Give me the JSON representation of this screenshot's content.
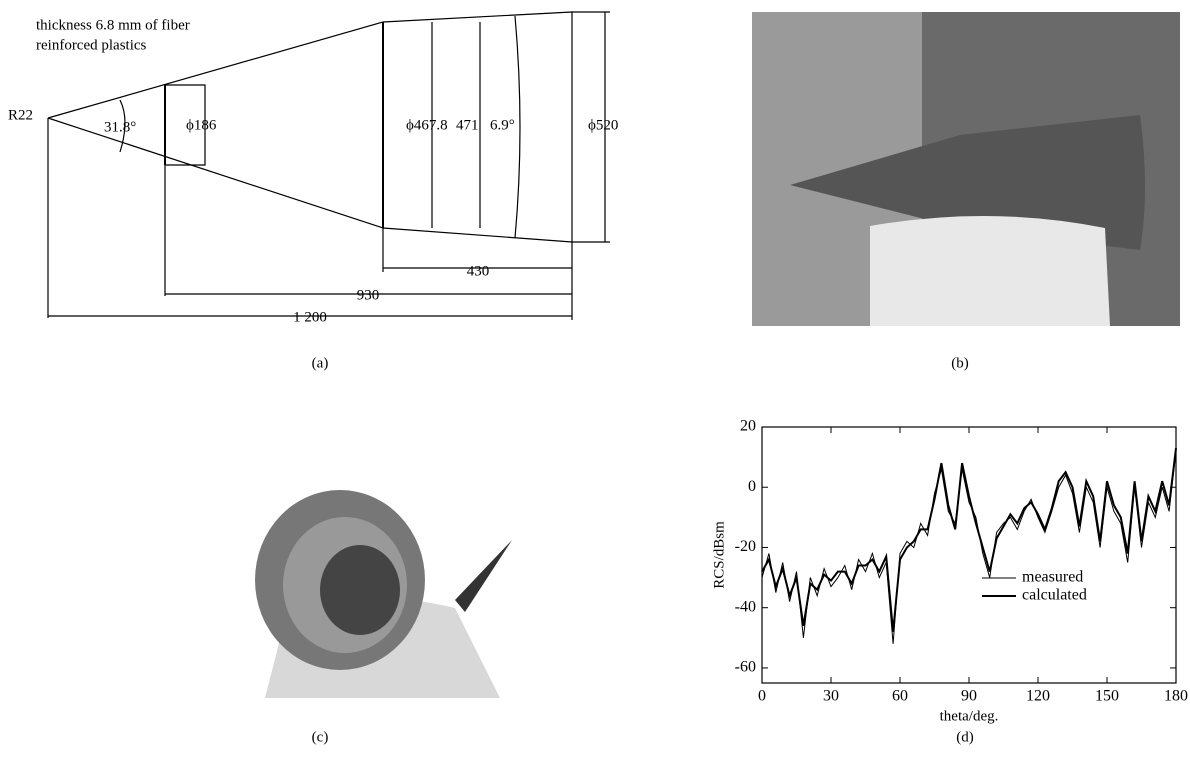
{
  "panel_a": {
    "note_lines": [
      "thickness 6.8 mm of fiber",
      "reinforced plastics"
    ],
    "radius": "R22",
    "cone_angle": "31.8°",
    "d_front": "ϕ186",
    "d_mid": "ϕ467.8",
    "d_inner": "471",
    "taper_angle": "6.9°",
    "d_rear": "ϕ520",
    "len_rear": "430",
    "len_mid": "930",
    "len_total": "1 200",
    "caption": "(a)"
  },
  "panel_b": {
    "caption": "(b)"
  },
  "panel_c": {
    "caption": "(c)"
  },
  "panel_d": {
    "caption": "(d)"
  },
  "chart_data": {
    "type": "line",
    "xlabel": "theta/deg.",
    "ylabel": "RCS/dBsm",
    "x": [
      0,
      3,
      6,
      9,
      12,
      15,
      18,
      21,
      24,
      27,
      30,
      33,
      36,
      39,
      42,
      45,
      48,
      51,
      54,
      57,
      60,
      63,
      66,
      69,
      72,
      75,
      78,
      81,
      84,
      87,
      90,
      93,
      96,
      99,
      102,
      105,
      108,
      111,
      114,
      117,
      120,
      123,
      126,
      129,
      132,
      135,
      138,
      141,
      144,
      147,
      150,
      153,
      156,
      159,
      162,
      165,
      168,
      171,
      174,
      177,
      180
    ],
    "series": [
      {
        "name": "measured",
        "color": "#000000",
        "values": [
          -30,
          -22,
          -35,
          -25,
          -38,
          -28,
          -50,
          -30,
          -36,
          -27,
          -33,
          -30,
          -26,
          -34,
          -24,
          -28,
          -22,
          -30,
          -25,
          -52,
          -22,
          -18,
          -20,
          -12,
          -16,
          -2,
          6,
          -8,
          -12,
          6,
          -5,
          -10,
          -22,
          -30,
          -15,
          -12,
          -10,
          -14,
          -8,
          -4,
          -10,
          -15,
          -8,
          0,
          4,
          -2,
          -15,
          0,
          -5,
          -20,
          0,
          -8,
          -12,
          -25,
          0,
          -20,
          -5,
          -10,
          0,
          -8,
          12
        ]
      },
      {
        "name": "calculated",
        "color": "#000000",
        "values": [
          -28,
          -24,
          -33,
          -27,
          -36,
          -30,
          -46,
          -32,
          -34,
          -29,
          -31,
          -28,
          -28,
          -32,
          -26,
          -26,
          -24,
          -28,
          -23,
          -48,
          -24,
          -20,
          -18,
          -14,
          -14,
          -4,
          8,
          -6,
          -14,
          8,
          -3,
          -12,
          -20,
          -28,
          -17,
          -13,
          -9,
          -12,
          -7,
          -5,
          -9,
          -14,
          -7,
          2,
          5,
          0,
          -13,
          2,
          -3,
          -18,
          2,
          -6,
          -10,
          -22,
          2,
          -18,
          -3,
          -8,
          2,
          -6,
          13
        ]
      }
    ],
    "xlim": [
      0,
      180
    ],
    "xticks": [
      0,
      30,
      60,
      90,
      120,
      150,
      180
    ],
    "ylim": [
      -65,
      20
    ],
    "yticks": [
      -60,
      -40,
      -20,
      0,
      20
    ]
  }
}
